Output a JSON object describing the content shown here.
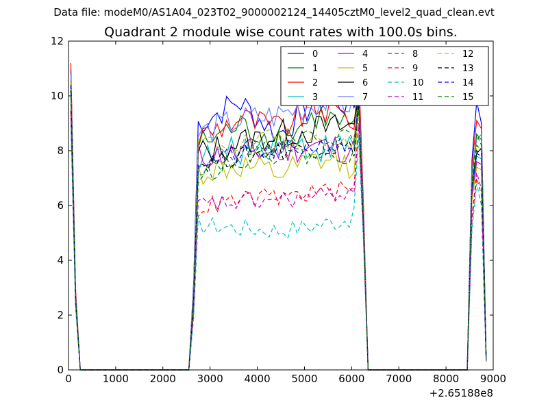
{
  "chart_data": {
    "type": "line",
    "suptitle": "Data file: modeM0/AS1A04_023T02_9000002124_14405cztM0_level2_quad_clean.evt",
    "title": "Quadrant 2 module wise count rates with 100.0s bins.",
    "xlabel": "",
    "ylabel": "",
    "x_offset_label": "+2.65188e8",
    "xlim": [
      0,
      9000
    ],
    "ylim": [
      0,
      12
    ],
    "x_ticks": [
      0,
      1000,
      2000,
      3000,
      4000,
      5000,
      6000,
      7000,
      8000,
      9000
    ],
    "x_tick_labels": [
      "0",
      "1000",
      "2000",
      "3000",
      "4000",
      "5000",
      "6000",
      "7000",
      "8000",
      "9000"
    ],
    "y_ticks": [
      0,
      2,
      4,
      6,
      8,
      10,
      12
    ],
    "y_tick_labels": [
      "0",
      "2",
      "4",
      "6",
      "8",
      "10",
      "12"
    ],
    "legend_position": "top-right",
    "legend_columns": 4,
    "x_segments": [
      [
        50,
        150,
        250
      ],
      [
        2550,
        2650,
        2750,
        2850,
        2950,
        3050,
        3150,
        3250,
        3350,
        3450,
        3550,
        3650,
        3750,
        3850,
        3950,
        4050,
        4150,
        4250,
        4350,
        4450,
        4550,
        4650,
        4750,
        4850,
        4950,
        5050,
        5150,
        5250,
        5350,
        5450,
        5550,
        5650,
        5750,
        5850,
        5950,
        6050,
        6150,
        6250,
        6350
      ],
      [
        8450,
        8550,
        8650,
        8750,
        8850
      ]
    ],
    "series": [
      {
        "name": "0",
        "color": "#0000ff",
        "dash": "solid",
        "levels": [
          9.0,
          9.8,
          8.6,
          9.9,
          9.6
        ],
        "spikes": [
          10.1,
          11.0,
          9.8,
          9.0
        ]
      },
      {
        "name": "1",
        "color": "#008000",
        "dash": "solid",
        "levels": [
          8.2,
          8.9,
          8.4,
          9.3,
          8.7
        ],
        "spikes": [
          10.0,
          10.9,
          8.6,
          8.4
        ]
      },
      {
        "name": "2",
        "color": "#ff0000",
        "dash": "solid",
        "levels": [
          8.5,
          9.2,
          8.8,
          9.6,
          9.1
        ],
        "spikes": [
          11.0,
          11.2,
          9.1,
          8.8
        ]
      },
      {
        "name": "3",
        "color": "#00bfbf",
        "dash": "solid",
        "levels": [
          7.7,
          8.0,
          8.3,
          8.1,
          8.2
        ],
        "spikes": [
          10.2,
          10.5,
          7.8,
          7.7
        ]
      },
      {
        "name": "4",
        "color": "#bf00bf",
        "dash": "solid",
        "levels": [
          7.8,
          7.9,
          8.0,
          8.2,
          8.0
        ],
        "spikes": [
          9.9,
          10.4,
          7.6,
          7.5
        ]
      },
      {
        "name": "5",
        "color": "#bfbf00",
        "dash": "solid",
        "levels": [
          7.2,
          7.4,
          7.1,
          7.6,
          7.5
        ],
        "spikes": [
          9.6,
          10.2,
          7.4,
          7.3
        ]
      },
      {
        "name": "6",
        "color": "#000000",
        "dash": "solid",
        "levels": [
          7.9,
          8.3,
          8.6,
          8.8,
          8.9
        ],
        "spikes": [
          10.0,
          10.6,
          7.9,
          8.1
        ]
      },
      {
        "name": "7",
        "color": "#6a80ff",
        "dash": "solid",
        "levels": [
          8.6,
          9.1,
          9.3,
          9.8,
          9.7
        ],
        "spikes": [
          10.3,
          10.8,
          8.4,
          8.6
        ]
      },
      {
        "name": "8",
        "color": "#008000",
        "dash": "dashed",
        "levels": [
          7.0,
          7.8,
          8.4,
          8.6,
          8.4
        ],
        "spikes": [
          9.8,
          10.3,
          8.6,
          8.2
        ]
      },
      {
        "name": "9",
        "color": "#ff0000",
        "dash": "dashed",
        "levels": [
          5.9,
          6.2,
          6.3,
          6.5,
          6.6
        ],
        "spikes": [
          9.0,
          9.5,
          7.0,
          6.4
        ]
      },
      {
        "name": "10",
        "color": "#00bfbf",
        "dash": "dashed",
        "levels": [
          5.3,
          5.2,
          5.1,
          5.3,
          5.6
        ],
        "spikes": [
          8.5,
          9.0,
          6.8,
          6.0
        ]
      },
      {
        "name": "11",
        "color": "#bf00bf",
        "dash": "dashed",
        "levels": [
          6.0,
          6.1,
          6.2,
          6.3,
          6.6
        ],
        "spikes": [
          8.9,
          9.4,
          7.2,
          6.6
        ]
      },
      {
        "name": "12",
        "color": "#bfbf00",
        "dash": "dashed",
        "levels": [
          8.3,
          8.2,
          8.5,
          8.3,
          8.2
        ],
        "spikes": [
          10.0,
          10.5,
          8.2,
          8.0
        ]
      },
      {
        "name": "13",
        "color": "#000000",
        "dash": "dashed",
        "levels": [
          7.5,
          7.8,
          8.0,
          8.1,
          8.1
        ],
        "spikes": [
          9.7,
          10.2,
          8.0,
          7.9
        ]
      },
      {
        "name": "14",
        "color": "#0000ff",
        "dash": "dashed",
        "levels": [
          7.6,
          7.8,
          8.0,
          8.2,
          8.1
        ],
        "spikes": [
          9.9,
          10.4,
          7.9,
          7.8
        ]
      },
      {
        "name": "15",
        "color": "#008000",
        "dash": "dashed",
        "levels": [
          7.4,
          7.7,
          7.9,
          7.8,
          7.9
        ],
        "spikes": [
          9.5,
          10.1,
          8.2,
          8.0
        ]
      }
    ]
  }
}
